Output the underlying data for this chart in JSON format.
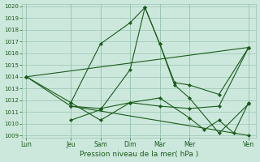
{
  "xlabel": "Pression niveau de la mer( hPa )",
  "background_color": "#cce8dc",
  "grid_color": "#99c4b0",
  "line_color": "#1a5c1a",
  "ylim": [
    1009,
    1020
  ],
  "yticks": [
    1009,
    1010,
    1011,
    1012,
    1013,
    1014,
    1015,
    1016,
    1017,
    1018,
    1019,
    1020
  ],
  "xtick_labels": [
    "Lun",
    "Jeu",
    "Sam",
    "Dim",
    "Mar",
    "Mer",
    "Ven"
  ],
  "xtick_pos": [
    0,
    3,
    5,
    7,
    9,
    11,
    15
  ],
  "xlim": [
    -0.3,
    15.5
  ],
  "lines": [
    {
      "comment": "main rising line: Lun->Jeu->Sam->Dim peak->Mar->Mer->Ven",
      "x": [
        0,
        3,
        5,
        7,
        8,
        9,
        10,
        11,
        13,
        15
      ],
      "y": [
        1014.0,
        1011.8,
        1016.8,
        1018.6,
        1019.9,
        1016.8,
        1013.5,
        1013.3,
        1012.5,
        1016.5
      ]
    },
    {
      "x": [
        3,
        5,
        7,
        8,
        9,
        10,
        11,
        13,
        15
      ],
      "y": [
        1010.3,
        1011.2,
        1014.6,
        1019.9,
        1016.8,
        1013.3,
        1012.2,
        1009.2,
        1011.7
      ]
    },
    {
      "x": [
        0,
        15
      ],
      "y": [
        1014.0,
        1016.5
      ]
    },
    {
      "x": [
        3,
        15
      ],
      "y": [
        1011.5,
        1009.0
      ]
    },
    {
      "x": [
        3,
        5,
        7,
        9,
        11,
        12,
        13,
        14,
        15
      ],
      "y": [
        1011.8,
        1010.3,
        1011.8,
        1012.2,
        1010.5,
        1009.5,
        1010.3,
        1009.2,
        1011.8
      ]
    },
    {
      "x": [
        0,
        3,
        5,
        7,
        9,
        11,
        13,
        15
      ],
      "y": [
        1014.0,
        1011.5,
        1011.3,
        1011.8,
        1011.5,
        1011.3,
        1011.5,
        1016.5
      ]
    }
  ]
}
